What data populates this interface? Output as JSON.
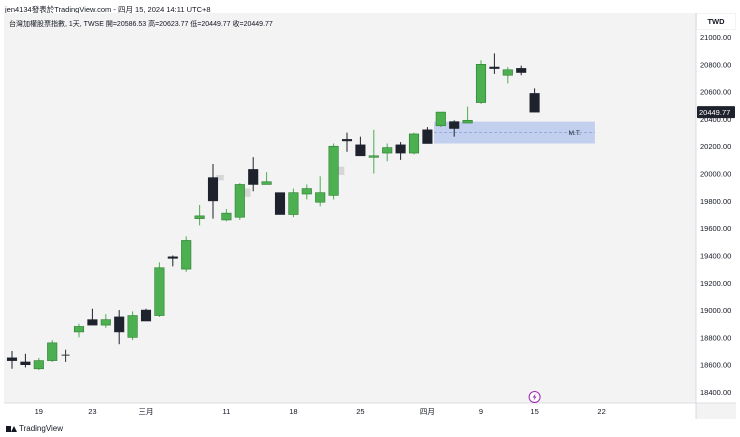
{
  "header": {
    "text": "jen4134發表於TradingView.com - 四月 15, 2024 14:11 UTC+8"
  },
  "legend": {
    "text": "台灣加權股票指數, 1天, TWSE  開=20586.53  高=20623.77  低=20449.77  收=20449.77"
  },
  "currency": "TWD",
  "footer": {
    "brand": "TradingView"
  },
  "colors": {
    "up": "#4caf50",
    "down": "#1e222d",
    "zone": "#b2c3ec",
    "last_price_bg": "#1e222d",
    "event_icon": "#9c27b0"
  },
  "chart_data": {
    "type": "candlestick",
    "title": "",
    "symbol": "台灣加權股票指數",
    "interval": "1天",
    "exchange": "TWSE",
    "ohlc_display": {
      "open": "20586.53",
      "high": "20623.77",
      "low": "20449.77",
      "close": "20449.77"
    },
    "last_price_label": "20449.77",
    "ylim": [
      18350,
      21120
    ],
    "y_ticks": [
      "21000.00",
      "20800.00",
      "20600.00",
      "20400.00",
      "20200.00",
      "20000.00",
      "19800.00",
      "19600.00",
      "19400.00",
      "19200.00",
      "19000.00",
      "18800.00",
      "18600.00",
      "18400.00"
    ],
    "y_tick_values": [
      21000,
      20800,
      20600,
      20400,
      20200,
      20000,
      19800,
      19600,
      19400,
      19200,
      19000,
      18800,
      18600,
      18400
    ],
    "x_ticks": [
      "19",
      "23",
      "三月",
      "11",
      "18",
      "25",
      "四月",
      "9",
      "15",
      "22"
    ],
    "x_tick_slots": [
      2,
      6,
      10,
      16,
      21,
      26,
      31,
      35,
      39,
      44
    ],
    "candles": [
      {
        "slot": 0,
        "o": 18650,
        "h": 18700,
        "l": 18570,
        "c": 18630
      },
      {
        "slot": 1,
        "o": 18620,
        "h": 18680,
        "l": 18580,
        "c": 18600
      },
      {
        "slot": 2,
        "o": 18570,
        "h": 18650,
        "l": 18560,
        "c": 18630
      },
      {
        "slot": 3,
        "o": 18630,
        "h": 18780,
        "l": 18620,
        "c": 18760
      },
      {
        "slot": 4,
        "o": 18670,
        "h": 18710,
        "l": 18620,
        "c": 18670
      },
      {
        "slot": 5,
        "o": 18840,
        "h": 18900,
        "l": 18800,
        "c": 18880
      },
      {
        "slot": 6,
        "o": 18930,
        "h": 19010,
        "l": 18900,
        "c": 18890
      },
      {
        "slot": 7,
        "o": 18890,
        "h": 18970,
        "l": 18870,
        "c": 18930
      },
      {
        "slot": 8,
        "o": 18950,
        "h": 19000,
        "l": 18750,
        "c": 18840
      },
      {
        "slot": 9,
        "o": 18800,
        "h": 18990,
        "l": 18780,
        "c": 18960
      },
      {
        "slot": 10,
        "o": 19000,
        "h": 19010,
        "l": 18920,
        "c": 18920
      },
      {
        "slot": 11,
        "o": 18960,
        "h": 19350,
        "l": 18950,
        "c": 19310
      },
      {
        "slot": 12,
        "o": 19390,
        "h": 19400,
        "l": 19320,
        "c": 19380
      },
      {
        "slot": 13,
        "o": 19300,
        "h": 19540,
        "l": 19280,
        "c": 19510
      },
      {
        "slot": 14,
        "o": 19670,
        "h": 19770,
        "l": 19620,
        "c": 19690
      },
      {
        "slot": 15,
        "o": 19970,
        "h": 20070,
        "l": 19670,
        "c": 19800
      },
      {
        "slot": 16,
        "o": 19660,
        "h": 19740,
        "l": 19650,
        "c": 19710
      },
      {
        "slot": 17,
        "o": 19680,
        "h": 19930,
        "l": 19660,
        "c": 19920
      },
      {
        "slot": 18,
        "o": 20030,
        "h": 20120,
        "l": 19870,
        "c": 19920
      },
      {
        "slot": 19,
        "o": 19920,
        "h": 20010,
        "l": 19920,
        "c": 19940
      },
      {
        "slot": 20,
        "o": 19860,
        "h": 19860,
        "l": 19700,
        "c": 19700
      },
      {
        "slot": 21,
        "o": 19700,
        "h": 19890,
        "l": 19680,
        "c": 19860
      },
      {
        "slot": 22,
        "o": 19850,
        "h": 19920,
        "l": 19810,
        "c": 19890
      },
      {
        "slot": 23,
        "o": 19790,
        "h": 19980,
        "l": 19760,
        "c": 19860
      },
      {
        "slot": 24,
        "o": 19840,
        "h": 20220,
        "l": 19810,
        "c": 20200
      },
      {
        "slot": 25,
        "o": 20250,
        "h": 20300,
        "l": 20160,
        "c": 20240
      },
      {
        "slot": 26,
        "o": 20210,
        "h": 20270,
        "l": 20130,
        "c": 20130
      },
      {
        "slot": 27,
        "o": 20130,
        "h": 20320,
        "l": 20000,
        "c": 20130
      },
      {
        "slot": 28,
        "o": 20150,
        "h": 20220,
        "l": 20090,
        "c": 20190
      },
      {
        "slot": 29,
        "o": 20210,
        "h": 20230,
        "l": 20100,
        "c": 20150
      },
      {
        "slot": 30,
        "o": 20150,
        "h": 20300,
        "l": 20140,
        "c": 20290
      },
      {
        "slot": 31,
        "o": 20320,
        "h": 20340,
        "l": 20220,
        "c": 20220
      },
      {
        "slot": 32,
        "o": 20350,
        "h": 20450,
        "l": 20340,
        "c": 20450
      },
      {
        "slot": 33,
        "o": 20380,
        "h": 20390,
        "l": 20270,
        "c": 20330
      },
      {
        "slot": 34,
        "o": 20370,
        "h": 20490,
        "l": 20370,
        "c": 20390
      },
      {
        "slot": 35,
        "o": 20520,
        "h": 20830,
        "l": 20510,
        "c": 20800
      },
      {
        "slot": 36,
        "o": 20780,
        "h": 20880,
        "l": 20730,
        "c": 20770
      },
      {
        "slot": 37,
        "o": 20720,
        "h": 20780,
        "l": 20660,
        "c": 20760
      },
      {
        "slot": 38,
        "o": 20770,
        "h": 20790,
        "l": 20720,
        "c": 20740
      },
      {
        "slot": 39,
        "o": 20586.53,
        "h": 20623.77,
        "l": 20449.77,
        "c": 20449.77
      }
    ],
    "wick_only": [
      4
    ],
    "gap_fills": [
      {
        "slot": 15.5,
        "top": 19990,
        "bottom": 19950
      },
      {
        "slot": 17.5,
        "top": 19890,
        "bottom": 19830
      },
      {
        "slot": 24.5,
        "top": 20050,
        "bottom": 19990
      }
    ],
    "zone": {
      "label": "M.T.",
      "top": 20380,
      "bottom": 20220,
      "from_slot": 31.5,
      "to_slot": 43.5
    },
    "event_marker": {
      "slot": 39,
      "icon": "lightning-icon"
    }
  }
}
